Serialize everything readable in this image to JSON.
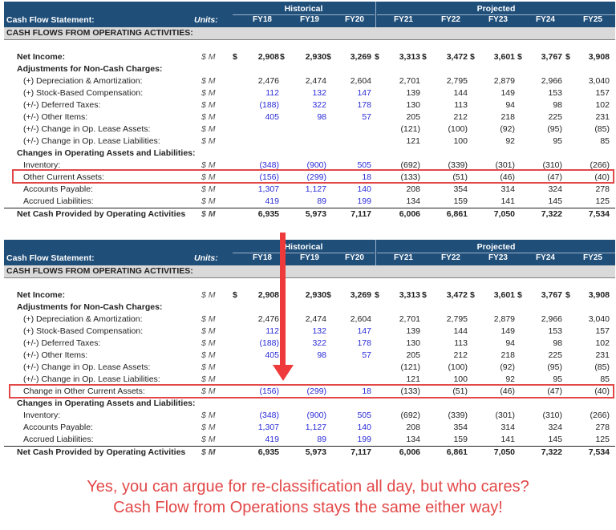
{
  "tables": [
    {
      "header": {
        "title": "Cash Flow Statement:",
        "units_label": "Units:",
        "group_historical": "Historical",
        "group_projected": "Projected",
        "years": [
          "FY18",
          "FY19",
          "FY20",
          "FY21",
          "FY22",
          "FY23",
          "FY24",
          "FY25"
        ]
      },
      "section": "CASH FLOWS FROM OPERATING ACTIVITIES:",
      "rows": [
        {
          "label": "Net Income:",
          "unit": "$ M",
          "values": [
            "2,908",
            "2,930",
            "3,269",
            "3,313",
            "3,472",
            "3,601",
            "3,767",
            "3,908"
          ],
          "dollar": "$"
        },
        {
          "label": "Adjustments for Non-Cash Charges:"
        },
        {
          "label": "(+) Depreciation & Amortization:",
          "unit": "$ M",
          "values": [
            "2,476",
            "2,474",
            "2,604",
            "2,701",
            "2,795",
            "2,879",
            "2,966",
            "3,040"
          ]
        },
        {
          "label": "(+) Stock-Based Compensation:",
          "unit": "$ M",
          "values": [
            "112",
            "132",
            "147",
            "139",
            "144",
            "149",
            "153",
            "157"
          ]
        },
        {
          "label": "(+/-) Deferred Taxes:",
          "unit": "$ M",
          "values": [
            "(188)",
            "322",
            "178",
            "130",
            "113",
            "94",
            "98",
            "102"
          ]
        },
        {
          "label": "(+/-) Other Items:",
          "unit": "$ M",
          "values": [
            "405",
            "98",
            "57",
            "205",
            "212",
            "218",
            "225",
            "231"
          ]
        },
        {
          "label": "(+/-) Change in Op. Lease Assets:",
          "unit": "$ M",
          "values": [
            "",
            "",
            "",
            "(121)",
            "(100)",
            "(92)",
            "(95)",
            "(85)"
          ]
        },
        {
          "label": "(+/-) Change in Op. Lease Liabilities:",
          "unit": "$ M",
          "values": [
            "",
            "",
            "",
            "121",
            "100",
            "92",
            "95",
            "85"
          ]
        },
        {
          "label": "Changes in Operating Assets and Liabilities:"
        },
        {
          "label": "Inventory:",
          "unit": "$ M",
          "values": [
            "(348)",
            "(900)",
            "505",
            "(692)",
            "(339)",
            "(301)",
            "(310)",
            "(266)"
          ]
        },
        {
          "label": "Other Current Assets:",
          "unit": "$ M",
          "values": [
            "(156)",
            "(299)",
            "18",
            "(133)",
            "(51)",
            "(46)",
            "(47)",
            "(40)"
          ]
        },
        {
          "label": "Accounts Payable:",
          "unit": "$ M",
          "values": [
            "1,307",
            "1,127",
            "140",
            "208",
            "354",
            "314",
            "324",
            "278"
          ]
        },
        {
          "label": "Accrued Liabilities:",
          "unit": "$ M",
          "values": [
            "419",
            "89",
            "199",
            "134",
            "159",
            "141",
            "145",
            "125"
          ]
        },
        {
          "label": "Net Cash Provided by Operating Activities",
          "unit": "$ M",
          "values": [
            "6,935",
            "5,973",
            "7,117",
            "6,006",
            "6,861",
            "7,050",
            "7,322",
            "7,534"
          ]
        }
      ]
    },
    {
      "header": {
        "title": "Cash Flow Statement:",
        "units_label": "Units:",
        "group_historical": "Historical",
        "group_projected": "Projected",
        "years": [
          "FY18",
          "FY19",
          "FY20",
          "FY21",
          "FY22",
          "FY23",
          "FY24",
          "FY25"
        ]
      },
      "section": "CASH FLOWS FROM OPERATING ACTIVITIES:",
      "rows": [
        {
          "label": "Net Income:",
          "unit": "$ M",
          "values": [
            "2,908",
            "2,930",
            "3,269",
            "3,313",
            "3,472",
            "3,601",
            "3,767",
            "3,908"
          ],
          "dollar": "$"
        },
        {
          "label": "Adjustments for Non-Cash Charges:"
        },
        {
          "label": "(+) Depreciation & Amortization:",
          "unit": "$ M",
          "values": [
            "2,476",
            "2,474",
            "2,604",
            "2,701",
            "2,795",
            "2,879",
            "2,966",
            "3,040"
          ]
        },
        {
          "label": "(+) Stock-Based Compensation:",
          "unit": "$ M",
          "values": [
            "112",
            "132",
            "147",
            "139",
            "144",
            "149",
            "153",
            "157"
          ]
        },
        {
          "label": "(+/-) Deferred Taxes:",
          "unit": "$ M",
          "values": [
            "(188)",
            "322",
            "178",
            "130",
            "113",
            "94",
            "98",
            "102"
          ]
        },
        {
          "label": "(+/-) Other Items:",
          "unit": "$ M",
          "values": [
            "405",
            "98",
            "57",
            "205",
            "212",
            "218",
            "225",
            "231"
          ]
        },
        {
          "label": "(+/-) Change in Op. Lease Assets:",
          "unit": "$ M",
          "values": [
            "",
            "",
            "",
            "(121)",
            "(100)",
            "(92)",
            "(95)",
            "(85)"
          ]
        },
        {
          "label": "(+/-) Change in Op. Lease Liabilities:",
          "unit": "$ M",
          "values": [
            "",
            "",
            "",
            "121",
            "100",
            "92",
            "95",
            "85"
          ]
        },
        {
          "label": "Change in Other Current Assets:",
          "unit": "$ M",
          "values": [
            "(156)",
            "(299)",
            "18",
            "(133)",
            "(51)",
            "(46)",
            "(47)",
            "(40)"
          ]
        },
        {
          "label": "Changes in Operating Assets and Liabilities:"
        },
        {
          "label": "Inventory:",
          "unit": "$ M",
          "values": [
            "(348)",
            "(900)",
            "505",
            "(692)",
            "(339)",
            "(301)",
            "(310)",
            "(266)"
          ]
        },
        {
          "label": "Accounts Payable:",
          "unit": "$ M",
          "values": [
            "1,307",
            "1,127",
            "140",
            "208",
            "354",
            "314",
            "324",
            "278"
          ]
        },
        {
          "label": "Accrued Liabilities:",
          "unit": "$ M",
          "values": [
            "419",
            "89",
            "199",
            "134",
            "159",
            "141",
            "145",
            "125"
          ]
        },
        {
          "label": "Net Cash Provided by Operating Activities",
          "unit": "$ M",
          "values": [
            "6,935",
            "5,973",
            "7,117",
            "6,006",
            "6,861",
            "7,050",
            "7,322",
            "7,534"
          ]
        }
      ]
    }
  ],
  "caption": {
    "line1": "Yes, you can argue for re-classification all day, but who cares?",
    "line2": "Cash Flow from Operations stays the same either way!"
  },
  "colors": {
    "header_bg": "#1f4e79",
    "highlight": "#e34848",
    "input_blue": "#2a2ad6"
  }
}
